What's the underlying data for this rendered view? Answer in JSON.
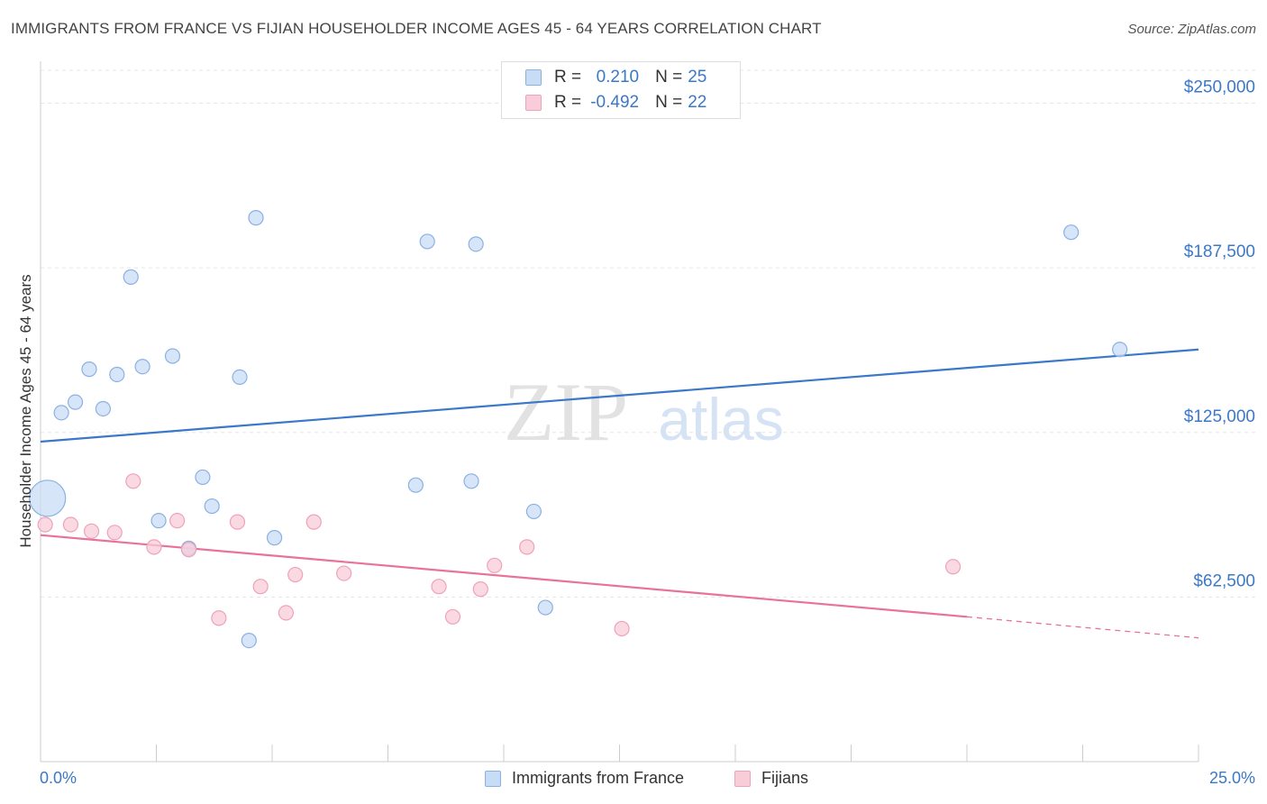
{
  "header": {
    "title": "IMMIGRANTS FROM FRANCE VS FIJIAN HOUSEHOLDER INCOME AGES 45 - 64 YEARS CORRELATION CHART",
    "source": "Source: ZipAtlas.com"
  },
  "legend_top": {
    "rows": [
      {
        "r_label": "R =",
        "r_value": "0.210",
        "n_label": "N =",
        "n_value": "25"
      },
      {
        "r_label": "R =",
        "r_value": "-0.492",
        "n_label": "N =",
        "n_value": "22"
      }
    ]
  },
  "legend_bottom": {
    "items": [
      {
        "label": "Immigrants from France"
      },
      {
        "label": "Fijians"
      }
    ]
  },
  "colors": {
    "blue_fill": "#c9dcf5",
    "blue_stroke": "#8ab1e3",
    "blue_line": "#3a78c9",
    "pink_fill": "#f8ccd8",
    "pink_stroke": "#efa2b9",
    "pink_line": "#e8729a",
    "tick_text": "#3b78c8",
    "grid": "#e5e5e5"
  },
  "chart_data": {
    "type": "scatter",
    "title": "IMMIGRANTS FROM FRANCE VS FIJIAN HOUSEHOLDER INCOME AGES 45 - 64 YEARS CORRELATION CHART",
    "xlabel": "",
    "ylabel": "Householder Income Ages 45 - 64 years",
    "xlim": [
      0,
      25
    ],
    "ylim": [
      0,
      262500
    ],
    "x_tick_labels": [
      "0.0%",
      "25.0%"
    ],
    "y_ticks": [
      62500,
      125000,
      187500,
      250000
    ],
    "y_tick_labels": [
      "$62,500",
      "$125,000",
      "$187,500",
      "$250,000"
    ],
    "grid": true,
    "watermark": {
      "part1": "ZIP",
      "part2": "atlas"
    },
    "series": [
      {
        "name": "Immigrants from France",
        "color": "#8ab1e3",
        "r": 0.21,
        "n": 25,
        "trend": {
          "x": [
            0,
            25
          ],
          "y": [
            121500,
            156500
          ]
        },
        "points": [
          {
            "x": 0.15,
            "y": 100000,
            "size": "large"
          },
          {
            "x": 0.45,
            "y": 132500
          },
          {
            "x": 0.75,
            "y": 136500
          },
          {
            "x": 1.05,
            "y": 149000
          },
          {
            "x": 1.35,
            "y": 134000
          },
          {
            "x": 1.65,
            "y": 147000
          },
          {
            "x": 1.95,
            "y": 184000
          },
          {
            "x": 2.2,
            "y": 150000
          },
          {
            "x": 2.55,
            "y": 91500
          },
          {
            "x": 2.85,
            "y": 154000
          },
          {
            "x": 3.2,
            "y": 81000
          },
          {
            "x": 3.5,
            "y": 108000
          },
          {
            "x": 3.7,
            "y": 97000
          },
          {
            "x": 4.3,
            "y": 146000
          },
          {
            "x": 4.5,
            "y": 46000
          },
          {
            "x": 4.65,
            "y": 206500
          },
          {
            "x": 5.05,
            "y": 85000
          },
          {
            "x": 8.1,
            "y": 105000
          },
          {
            "x": 8.35,
            "y": 197500
          },
          {
            "x": 9.3,
            "y": 106500
          },
          {
            "x": 9.4,
            "y": 196500
          },
          {
            "x": 10.65,
            "y": 95000
          },
          {
            "x": 10.9,
            "y": 58500
          },
          {
            "x": 22.25,
            "y": 201000
          },
          {
            "x": 23.3,
            "y": 156500
          }
        ]
      },
      {
        "name": "Fijians",
        "color": "#efa2b9",
        "r": -0.492,
        "n": 22,
        "trend": {
          "x": [
            0,
            20
          ],
          "y": [
            86000,
            55000
          ]
        },
        "trend_dashed": {
          "x": [
            20,
            25
          ],
          "y": [
            55000,
            47000
          ]
        },
        "points": [
          {
            "x": 0.1,
            "y": 90000
          },
          {
            "x": 0.65,
            "y": 90000
          },
          {
            "x": 1.1,
            "y": 87500
          },
          {
            "x": 1.6,
            "y": 87000
          },
          {
            "x": 2.0,
            "y": 106500
          },
          {
            "x": 2.45,
            "y": 81500
          },
          {
            "x": 2.95,
            "y": 91500
          },
          {
            "x": 3.2,
            "y": 80500
          },
          {
            "x": 3.85,
            "y": 54500
          },
          {
            "x": 4.25,
            "y": 91000
          },
          {
            "x": 4.75,
            "y": 66500
          },
          {
            "x": 5.3,
            "y": 56500
          },
          {
            "x": 5.5,
            "y": 71000
          },
          {
            "x": 5.9,
            "y": 91000
          },
          {
            "x": 6.55,
            "y": 71500
          },
          {
            "x": 8.6,
            "y": 66500
          },
          {
            "x": 8.9,
            "y": 55000
          },
          {
            "x": 9.5,
            "y": 65500
          },
          {
            "x": 9.8,
            "y": 74500
          },
          {
            "x": 10.5,
            "y": 81500
          },
          {
            "x": 12.55,
            "y": 50500
          },
          {
            "x": 19.7,
            "y": 74000
          }
        ]
      }
    ]
  }
}
